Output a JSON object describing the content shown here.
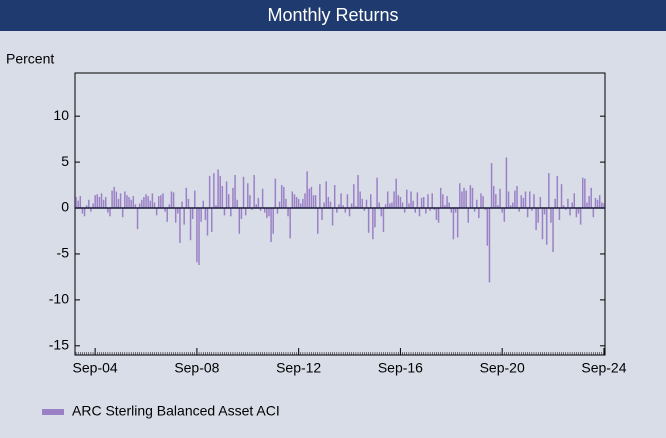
{
  "chart_data": {
    "type": "bar",
    "title": "Monthly Returns",
    "y_label": "Percent",
    "categories": [
      null,
      null,
      null,
      null,
      null,
      null,
      null,
      null,
      null,
      "Sep-04",
      null,
      null,
      null,
      null,
      null,
      null,
      null,
      null,
      null,
      null,
      null,
      null,
      null,
      null,
      null,
      null,
      null,
      null,
      null,
      null,
      null,
      null,
      null,
      null,
      null,
      null,
      null,
      null,
      null,
      null,
      null,
      null,
      null,
      null,
      null,
      null,
      null,
      null,
      null,
      null,
      null,
      null,
      null,
      null,
      null,
      null,
      null,
      "Sep-08",
      null,
      null,
      null,
      null,
      null,
      null,
      null,
      null,
      null,
      null,
      null,
      null,
      null,
      null,
      null,
      null,
      null,
      null,
      null,
      null,
      null,
      null,
      null,
      null,
      null,
      null,
      null,
      null,
      null,
      null,
      null,
      null,
      null,
      null,
      null,
      null,
      null,
      null,
      null,
      null,
      null,
      null,
      null,
      null,
      null,
      null,
      null,
      "Sep-12",
      null,
      null,
      null,
      null,
      null,
      null,
      null,
      null,
      null,
      null,
      null,
      null,
      null,
      null,
      null,
      null,
      null,
      null,
      null,
      null,
      null,
      null,
      null,
      null,
      null,
      null,
      null,
      null,
      null,
      null,
      null,
      null,
      null,
      null,
      null,
      null,
      null,
      null,
      null,
      null,
      null,
      null,
      null,
      null,
      null,
      null,
      null,
      "Sep-16",
      null,
      null,
      null,
      null,
      null,
      null,
      null,
      null,
      null,
      null,
      null,
      null,
      null,
      null,
      null,
      null,
      null,
      null,
      null,
      null,
      null,
      null,
      null,
      null,
      null,
      null,
      null,
      null,
      null,
      null,
      null,
      null,
      null,
      null,
      null,
      null,
      null,
      null,
      null,
      null,
      null,
      null,
      null,
      null,
      null,
      null,
      null,
      "Sep-20",
      null,
      null,
      null,
      null,
      null,
      null,
      null,
      null,
      null,
      null,
      null,
      null,
      null,
      null,
      null,
      null,
      null,
      null,
      null,
      null,
      null,
      null,
      null,
      null,
      null,
      null,
      null,
      null,
      null,
      null,
      null,
      null,
      null,
      null,
      null,
      null,
      null,
      null,
      null,
      null,
      null,
      null,
      null,
      null,
      null,
      null,
      null,
      "Sep-24"
    ],
    "series": [
      {
        "name": "ARC Sterling Balanced Asset ACI",
        "color": "#9b80c6",
        "values": [
          1.2,
          0.8,
          1.3,
          -0.6,
          -0.9,
          0.3,
          0.9,
          -0.4,
          0.5,
          1.4,
          1.5,
          1.2,
          1.6,
          0.9,
          1.2,
          -0.5,
          -0.9,
          1.9,
          2.3,
          1.8,
          1.0,
          1.6,
          -1.0,
          1.8,
          1.4,
          1.2,
          0.9,
          1.3,
          0.4,
          -2.3,
          0.5,
          0.9,
          1.2,
          1.5,
          1.3,
          0.8,
          1.6,
          0.6,
          -0.8,
          1.3,
          1.4,
          1.6,
          -0.4,
          -1.5,
          0.4,
          1.8,
          1.7,
          -1.6,
          -0.6,
          -3.8,
          0.7,
          -1.8,
          2.2,
          1.0,
          -3.5,
          -1.2,
          1.9,
          -5.9,
          -6.2,
          -1.5,
          0.8,
          -1.3,
          -3.0,
          3.5,
          -2.6,
          3.8,
          0.3,
          4.2,
          3.5,
          2.4,
          -0.8,
          2.9,
          1.5,
          -0.9,
          2.2,
          3.6,
          0.9,
          -2.8,
          -1.2,
          3.4,
          -0.8,
          2.7,
          1.4,
          -0.2,
          3.6,
          0.4,
          1.1,
          -0.3,
          2.1,
          -0.5,
          -1.1,
          -0.9,
          -3.7,
          -2.8,
          3.2,
          -0.6,
          0.7,
          2.5,
          2.3,
          1.0,
          -0.9,
          -3.3,
          1.8,
          1.5,
          1.2,
          1.0,
          0.5,
          1.0,
          1.6,
          4.0,
          2.1,
          2.3,
          1.4,
          1.4,
          -2.8,
          2.6,
          -1.3,
          0.6,
          2.9,
          1.2,
          0.7,
          -1.9,
          2.5,
          -0.5,
          0.4,
          1.6,
          0.3,
          -0.5,
          1.5,
          -0.9,
          0.5,
          2.6,
          0.2,
          3.6,
          1.8,
          1.0,
          -0.3,
          0.9,
          -2.7,
          1.5,
          -3.4,
          -2.1,
          3.3,
          0.6,
          -0.9,
          -2.6,
          0.4,
          1.8,
          0.5,
          0.6,
          1.8,
          3.2,
          1.4,
          1.2,
          0.6,
          -0.5,
          2.0,
          0.5,
          1.8,
          0.8,
          -0.5,
          1.7,
          -0.9,
          1.1,
          1.2,
          -0.6,
          1.5,
          -0.3,
          1.6,
          -0.2,
          -1.3,
          -1.6,
          2.2,
          1.5,
          0.3,
          1.3,
          0.6,
          -0.5,
          -3.4,
          -0.5,
          -3.2,
          2.7,
          1.8,
          2.2,
          1.9,
          -1.6,
          2.5,
          2.2,
          -0.4,
          0.9,
          -1.1,
          1.6,
          1.3,
          -0.2,
          -4.1,
          -8.1,
          4.9,
          2.4,
          1.5,
          0.3,
          2.1,
          -0.5,
          -1.5,
          5.5,
          1.8,
          0.3,
          0.6,
          1.9,
          2.4,
          -0.4,
          1.4,
          1.1,
          1.8,
          -1.0,
          1.8,
          -0.3,
          1.5,
          -2.4,
          -1.6,
          1.2,
          -3.4,
          -0.7,
          -4.0,
          3.8,
          -1.6,
          -4.8,
          1.0,
          3.5,
          -1.3,
          2.6,
          0.3,
          -0.2,
          1.0,
          -0.8,
          0.6,
          1.6,
          -1.0,
          -0.6,
          -1.8,
          3.3,
          3.2,
          0.6,
          1.3,
          2.2,
          -1.0,
          1.1,
          0.9,
          1.4,
          0.6,
          0.5
        ]
      }
    ],
    "ylim": [
      -16,
      14.7
    ],
    "yticks": [
      -15,
      -10,
      -5,
      0,
      5,
      10
    ],
    "grid": false,
    "legend": "bottom-left"
  }
}
